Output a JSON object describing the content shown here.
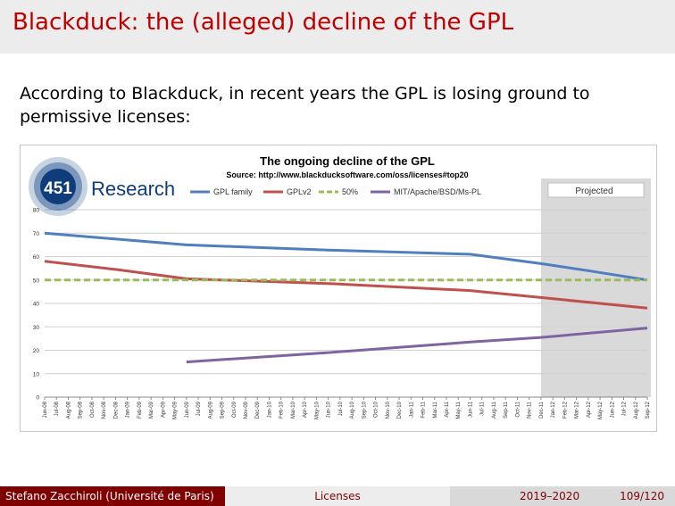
{
  "slide": {
    "title": "Blackduck: the (alleged) decline of the GPL",
    "text": "According to Blackduck, in recent years the GPL is losing ground to permissive licenses:"
  },
  "logo": {
    "number": "451",
    "word": "Research"
  },
  "chart_data": {
    "type": "line",
    "title": "The ongoing decline of the GPL",
    "subtitle": "Source: http://www.blackducksoftware.com/oss/licenses#top20",
    "annotation": "Projected",
    "legend_position": "top",
    "grid": true,
    "ylim": [
      0,
      80
    ],
    "yticks": [
      0,
      10,
      20,
      30,
      40,
      50,
      60,
      70,
      80
    ],
    "x": [
      "Jun-08",
      "Jul-08",
      "Aug-08",
      "Sep-08",
      "Oct-08",
      "Nov-08",
      "Dec-08",
      "Jan-09",
      "Feb-09",
      "Mar-09",
      "Apr-09",
      "May-09",
      "Jun-09",
      "Jul-09",
      "Aug-09",
      "Sep-09",
      "Oct-09",
      "Nov-09",
      "Dec-09",
      "Jan-10",
      "Feb-10",
      "Mar-10",
      "Apr-10",
      "May-10",
      "Jun-10",
      "Jul-10",
      "Aug-10",
      "Sep-10",
      "Oct-10",
      "Nov-10",
      "Dec-10",
      "Jan-11",
      "Feb-11",
      "Mar-11",
      "Apr-11",
      "May-11",
      "Jun-11",
      "Jul-11",
      "Aug-11",
      "Sep-11",
      "Oct-11",
      "Nov-11",
      "Dec-11",
      "Jan-12",
      "Feb-12",
      "Mar-12",
      "Apr-12",
      "May-12",
      "Jun-12",
      "Jul-12",
      "Aug-12",
      "Sep-12"
    ],
    "projected_from": "Dec-11",
    "series": [
      {
        "name": "GPL family",
        "color": "#4f7fbf",
        "dash": false,
        "points": [
          [
            "Jun-08",
            70
          ],
          [
            "Jun-09",
            65
          ],
          [
            "Jun-10",
            62.8
          ],
          [
            "Jun-11",
            61
          ],
          [
            "Dec-11",
            57
          ],
          [
            "Apr-12",
            54
          ],
          [
            "Sep-12",
            50
          ]
        ]
      },
      {
        "name": "GPLv2",
        "color": "#c0504d",
        "dash": false,
        "points": [
          [
            "Jun-08",
            58
          ],
          [
            "Dec-08",
            54.5
          ],
          [
            "Jun-09",
            50.5
          ],
          [
            "Jun-10",
            48.5
          ],
          [
            "Jun-11",
            45.5
          ],
          [
            "Dec-11",
            42.5
          ],
          [
            "Sep-12",
            38
          ]
        ]
      },
      {
        "name": "50%",
        "color": "#9bbb59",
        "dash": true,
        "points": [
          [
            "Jun-08",
            50
          ],
          [
            "Sep-12",
            50
          ]
        ]
      },
      {
        "name": "MIT/Apache/BSD/Ms-PL",
        "color": "#8064a2",
        "dash": false,
        "points": [
          [
            "Jun-09",
            15
          ],
          [
            "Jun-10",
            19
          ],
          [
            "Jun-11",
            23.5
          ],
          [
            "Dec-11",
            25.5
          ],
          [
            "Sep-12",
            29.5
          ]
        ]
      }
    ]
  },
  "footer": {
    "author": "Stefano Zacchiroli  (Université de Paris)",
    "topic": "Licenses",
    "year": "2019–2020",
    "page": "109/120"
  }
}
